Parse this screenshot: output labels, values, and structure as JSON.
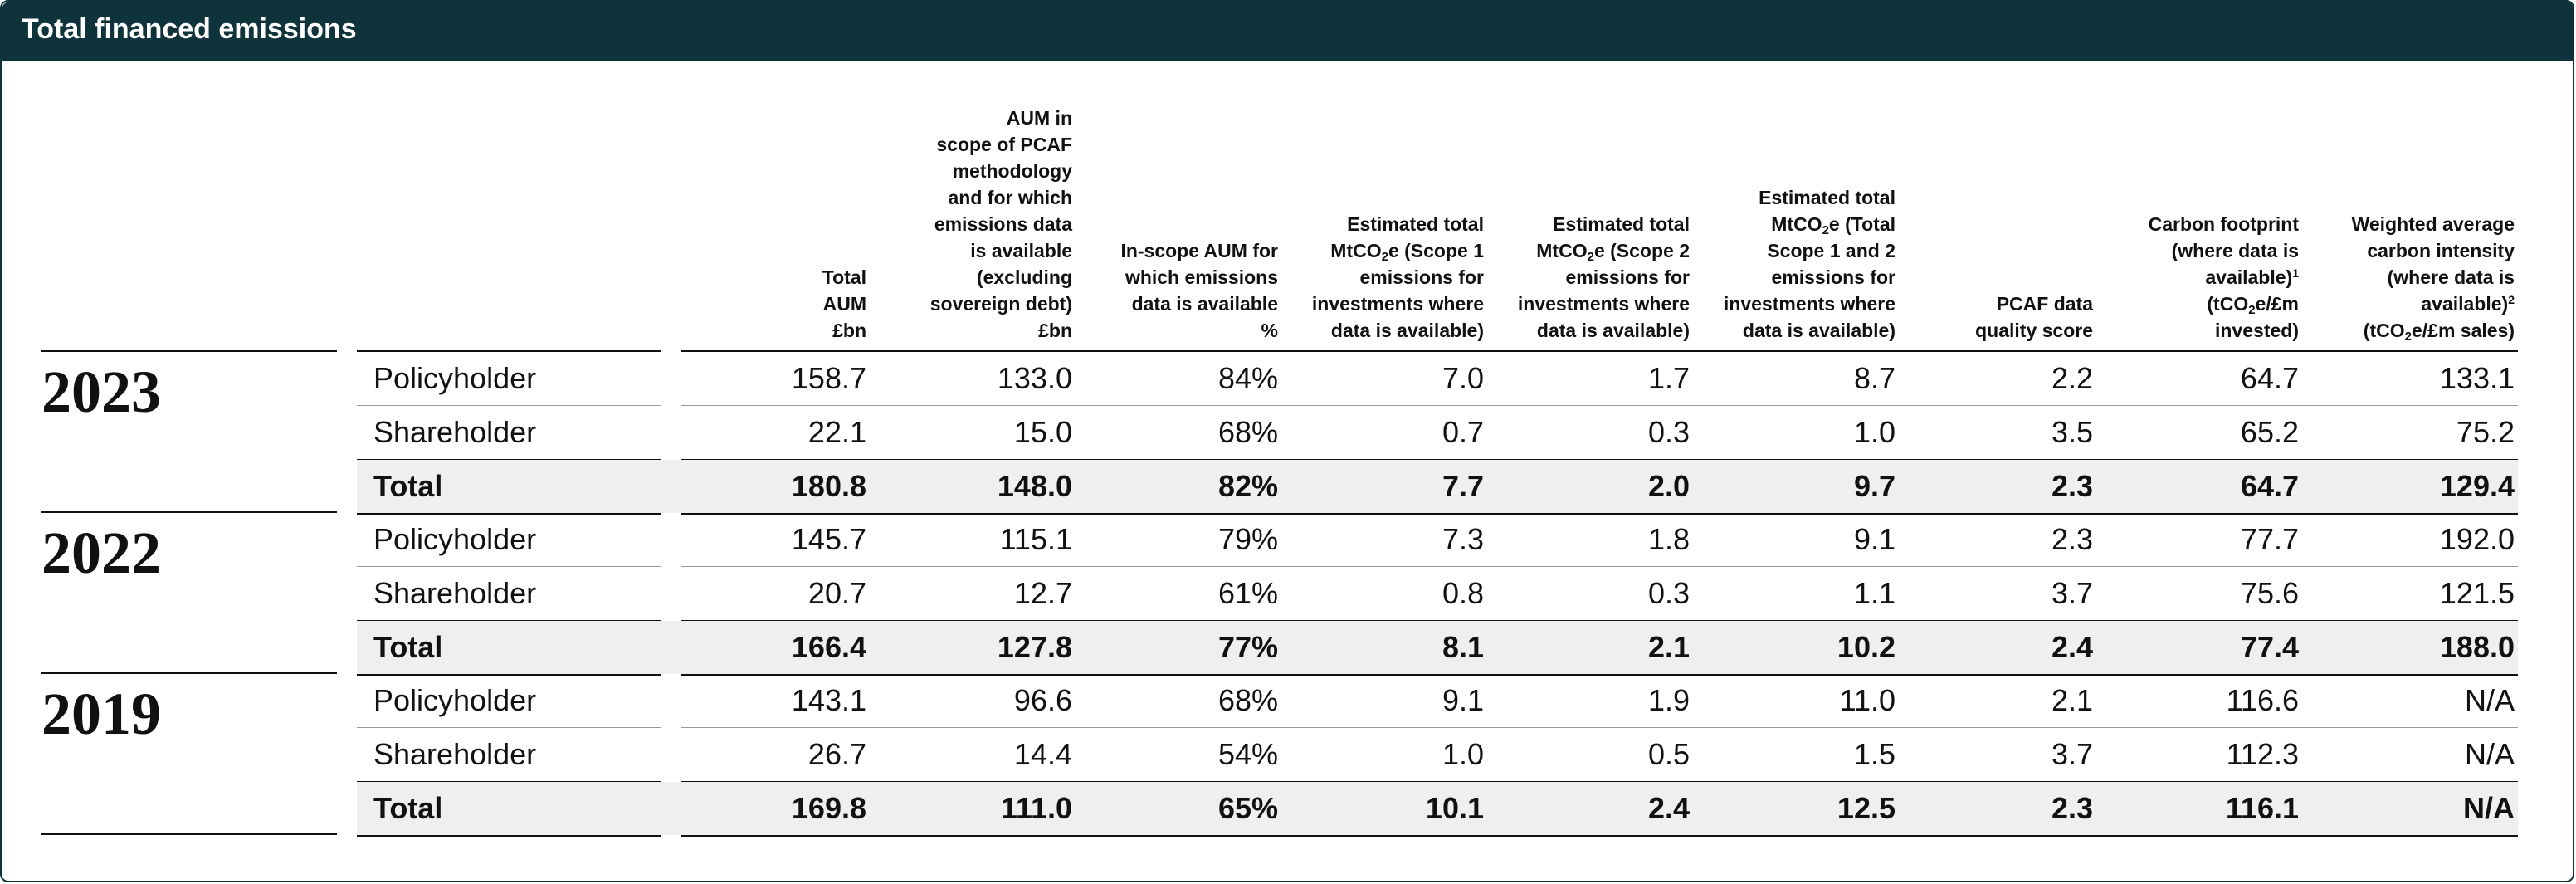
{
  "title": "Total financed emissions",
  "headers": [
    {
      "id": "total_aum",
      "lines": [
        {
          "t": "Total"
        },
        {
          "t": "AUM"
        },
        {
          "t": "£bn"
        }
      ]
    },
    {
      "id": "aum_in_scope",
      "lines": [
        {
          "t": "AUM in"
        },
        {
          "t": "scope of PCAF"
        },
        {
          "t": "methodology"
        },
        {
          "t": "and for which"
        },
        {
          "t": "emissions data"
        },
        {
          "t": "is available"
        },
        {
          "t": "(excluding"
        },
        {
          "t": "sovereign debt)"
        },
        {
          "t": "£bn"
        }
      ]
    },
    {
      "id": "in_scope_pct",
      "lines": [
        {
          "t": "In-scope AUM for"
        },
        {
          "t": "which emissions"
        },
        {
          "t": "data is available"
        },
        {
          "t": "%"
        }
      ]
    },
    {
      "id": "scope1",
      "lines": [
        {
          "t": "Estimated total"
        },
        {
          "t": "MtCO",
          "sub": "2",
          "t2": "e (Scope 1"
        },
        {
          "t": "emissions for"
        },
        {
          "t": "investments where"
        },
        {
          "t": "data is available)"
        }
      ]
    },
    {
      "id": "scope2",
      "lines": [
        {
          "t": "Estimated total"
        },
        {
          "t": "MtCO",
          "sub": "2",
          "t2": "e (Scope 2"
        },
        {
          "t": "emissions for"
        },
        {
          "t": "investments where"
        },
        {
          "t": "data is available)"
        }
      ]
    },
    {
      "id": "scope12",
      "lines": [
        {
          "t": "Estimated total"
        },
        {
          "t": "MtCO",
          "sub": "2",
          "t2": "e (Total"
        },
        {
          "t": "Scope 1 and 2"
        },
        {
          "t": "emissions for"
        },
        {
          "t": "investments where"
        },
        {
          "t": "data is available)"
        }
      ]
    },
    {
      "id": "pcaf",
      "lines": [
        {
          "t": "PCAF data"
        },
        {
          "t": "quality score"
        }
      ]
    },
    {
      "id": "footprint",
      "lines": [
        {
          "t": "Carbon footprint"
        },
        {
          "t": "(where data is"
        },
        {
          "t": "available)",
          "sup": "1"
        },
        {
          "t": "(tCO",
          "sub": "2",
          "t2": "e/£m"
        },
        {
          "t": "invested)"
        }
      ]
    },
    {
      "id": "intensity",
      "lines": [
        {
          "t": "Weighted average"
        },
        {
          "t": "carbon intensity"
        },
        {
          "t": "(where data is"
        },
        {
          "t": "available)",
          "sup": "2"
        },
        {
          "t": "(tCO",
          "sub": "2",
          "t2": "e/£m sales)"
        }
      ]
    }
  ],
  "groups": [
    {
      "year": "2023",
      "rows": [
        {
          "label": "Policyholder",
          "total": false,
          "values": [
            "158.7",
            "133.0",
            "84%",
            "7.0",
            "1.7",
            "8.7",
            "2.2",
            "64.7",
            "133.1"
          ]
        },
        {
          "label": "Shareholder",
          "total": false,
          "values": [
            "22.1",
            "15.0",
            "68%",
            "0.7",
            "0.3",
            "1.0",
            "3.5",
            "65.2",
            "75.2"
          ]
        },
        {
          "label": "Total",
          "total": true,
          "values": [
            "180.8",
            "148.0",
            "82%",
            "7.7",
            "2.0",
            "9.7",
            "2.3",
            "64.7",
            "129.4"
          ]
        }
      ]
    },
    {
      "year": "2022",
      "rows": [
        {
          "label": "Policyholder",
          "total": false,
          "values": [
            "145.7",
            "115.1",
            "79%",
            "7.3",
            "1.8",
            "9.1",
            "2.3",
            "77.7",
            "192.0"
          ]
        },
        {
          "label": "Shareholder",
          "total": false,
          "values": [
            "20.7",
            "12.7",
            "61%",
            "0.8",
            "0.3",
            "1.1",
            "3.7",
            "75.6",
            "121.5"
          ]
        },
        {
          "label": "Total",
          "total": true,
          "values": [
            "166.4",
            "127.8",
            "77%",
            "8.1",
            "2.1",
            "10.2",
            "2.4",
            "77.4",
            "188.0"
          ]
        }
      ]
    },
    {
      "year": "2019",
      "rows": [
        {
          "label": "Policyholder",
          "total": false,
          "values": [
            "143.1",
            "96.6",
            "68%",
            "9.1",
            "1.9",
            "11.0",
            "2.1",
            "116.6",
            "N/A"
          ]
        },
        {
          "label": "Shareholder",
          "total": false,
          "values": [
            "26.7",
            "14.4",
            "54%",
            "1.0",
            "0.5",
            "1.5",
            "3.7",
            "112.3",
            "N/A"
          ]
        },
        {
          "label": "Total",
          "total": true,
          "values": [
            "169.8",
            "111.0",
            "65%",
            "10.1",
            "2.4",
            "12.5",
            "2.3",
            "116.1",
            "N/A"
          ]
        }
      ]
    }
  ]
}
